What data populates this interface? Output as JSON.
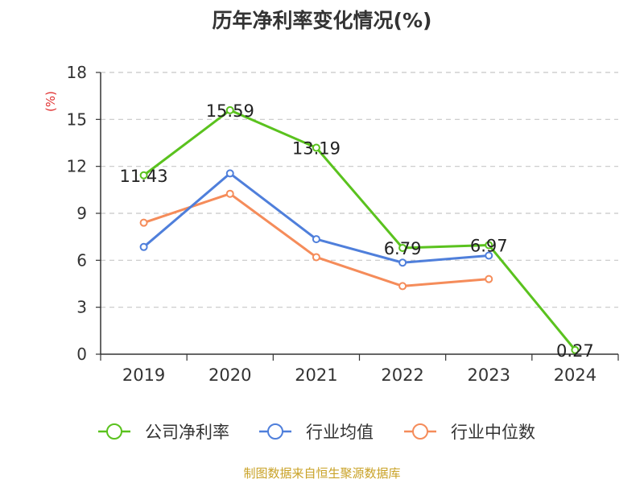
{
  "chart_data": {
    "type": "line",
    "title": "历年净利率变化情况(%)",
    "ylabel": "(%)",
    "xlabel": "",
    "categories": [
      "2019",
      "2020",
      "2021",
      "2022",
      "2023",
      "2024"
    ],
    "ylim": [
      0,
      18
    ],
    "yticks": [
      0,
      3,
      6,
      9,
      12,
      15,
      18
    ],
    "grid": true,
    "legend_position": "bottom",
    "series": [
      {
        "name": "公司净利率",
        "color": "#5ac21e",
        "values": [
          11.43,
          15.59,
          13.19,
          6.79,
          6.97,
          0.27
        ],
        "labels": [
          "11.43",
          "15.59",
          "13.19",
          "6.79",
          "6.97",
          "0.27"
        ]
      },
      {
        "name": "行业均值",
        "color": "#4f7fdb",
        "values": [
          6.85,
          11.55,
          7.35,
          5.85,
          6.3,
          null
        ]
      },
      {
        "name": "行业中位数",
        "color": "#f58c5a",
        "values": [
          8.4,
          10.25,
          6.2,
          4.35,
          4.8,
          null
        ]
      }
    ],
    "source": "制图数据来自恒生聚源数据库"
  }
}
